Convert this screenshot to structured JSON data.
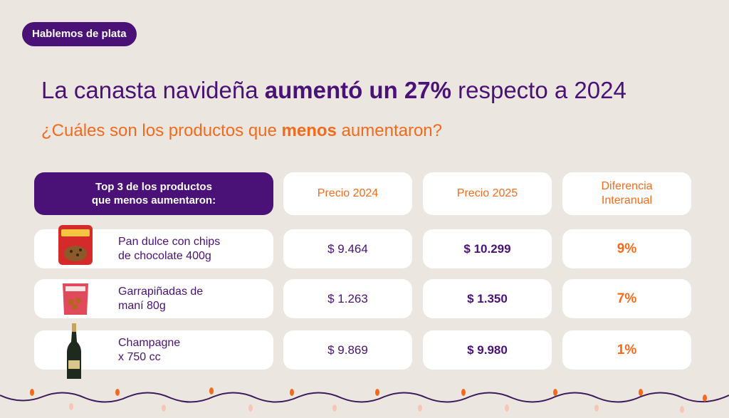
{
  "badge": "Hablemos de plata",
  "title": {
    "pre": "La canasta navideña ",
    "bold": "aumentó un 27%",
    "post": " respecto a 2024"
  },
  "subtitle": {
    "pre": "¿Cuáles son los productos que ",
    "bold": "menos",
    "post": " aumentaron?"
  },
  "table": {
    "header_main_line1": "Top 3 de los productos",
    "header_main_line2": "que menos aumentaron:",
    "header_col1": "Precio 2024",
    "header_col2": "Precio 2025",
    "header_col3_line1": "Diferencia",
    "header_col3_line2": "Interanual",
    "rows": [
      {
        "name_line1": "Pan dulce con chips",
        "name_line2": "de chocolate 400g",
        "icon": "pan-dulce-package-icon",
        "price_2024": "$ 9.464",
        "price_2025": "$ 10.299",
        "diff": "9%"
      },
      {
        "name_line1": "Garrapiñadas de",
        "name_line2": "maní 80g",
        "icon": "garrapinadas-bag-icon",
        "price_2024": "$ 1.263",
        "price_2025": "$ 1.350",
        "diff": "7%"
      },
      {
        "name_line1": "Champagne",
        "name_line2": "x 750 cc",
        "icon": "champagne-bottle-icon",
        "price_2024": "$ 9.869",
        "price_2025": "$ 9.980",
        "diff": "1%"
      }
    ]
  },
  "colors": {
    "background": "#ece6e0",
    "purple": "#4a1177",
    "orange": "#f26b1d"
  }
}
